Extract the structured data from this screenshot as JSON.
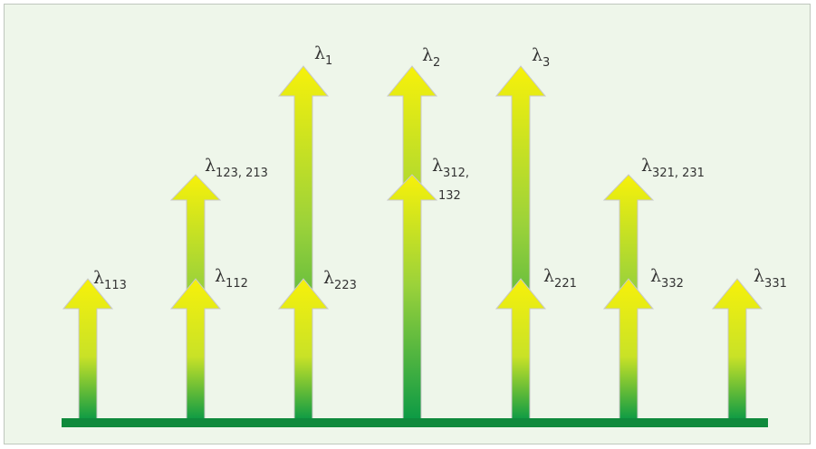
{
  "diagram": {
    "colors": {
      "background": "#eef6ea",
      "baseline": "#0f8a3c",
      "arrow_top": "#f7f10a",
      "arrow_bottom": "#0c9a45",
      "outline": "#c9c9c9",
      "text": "#333333"
    },
    "labels": {
      "l113": {
        "sym": "λ",
        "sub": "113"
      },
      "l112": {
        "sym": "λ",
        "sub": "112"
      },
      "l123_213": {
        "sym": "λ",
        "sub": "123, 213"
      },
      "l223": {
        "sym": "λ",
        "sub": "223"
      },
      "l1": {
        "sym": "λ",
        "sub": "1"
      },
      "l2": {
        "sym": "λ",
        "sub": "2"
      },
      "l312_132": {
        "sym": "λ",
        "sub": "312,",
        "sub2": "132"
      },
      "l3": {
        "sym": "λ",
        "sub": "3"
      },
      "l221": {
        "sym": "λ",
        "sub": "221"
      },
      "l321_231": {
        "sym": "λ",
        "sub": "321, 231"
      },
      "l332": {
        "sym": "λ",
        "sub": "332"
      },
      "l331": {
        "sym": "λ",
        "sub": "331"
      }
    }
  }
}
